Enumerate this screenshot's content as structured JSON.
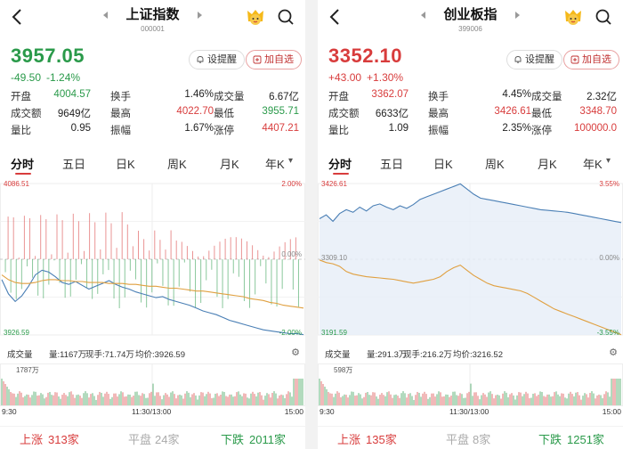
{
  "panels": [
    {
      "title": "上证指数",
      "code": "000001",
      "price": "3957.05",
      "change": "-49.50",
      "change_pct": "-1.24%",
      "trend": "down",
      "alert_label": "设提醒",
      "watch_label": "加自选",
      "stats": [
        [
          {
            "label": "开盘",
            "value": "4004.57",
            "tone": "green"
          },
          {
            "label": "换手",
            "value": "1.46%",
            "tone": ""
          },
          {
            "label": "成交量",
            "value": "6.67亿",
            "tone": ""
          }
        ],
        [
          {
            "label": "成交额",
            "value": "9649亿",
            "tone": ""
          },
          {
            "label": "最高",
            "value": "4022.70",
            "tone": "red"
          },
          {
            "label": "最低",
            "value": "3955.71",
            "tone": "green"
          }
        ],
        [
          {
            "label": "量比",
            "value": "0.95",
            "tone": ""
          },
          {
            "label": "振幅",
            "value": "1.67%",
            "tone": ""
          },
          {
            "label": "涨停",
            "value": "4407.21",
            "tone": "red"
          }
        ]
      ],
      "tabs": [
        "分时",
        "五日",
        "日K",
        "周K",
        "月K",
        "年K"
      ],
      "chart": {
        "high_label": "4086.51",
        "low_label": "3926.59",
        "mid_label": "0.00%",
        "pct_high": "2.00%",
        "pct_low": "-2.00%",
        "high": 4086.51,
        "low": 3926.59,
        "price_series": [
          3985,
          3970,
          3962,
          3968,
          3978,
          3990,
          3995,
          3993,
          3988,
          3982,
          3980,
          3983,
          3979,
          3975,
          3978,
          3981,
          3984,
          3980,
          3977,
          3975,
          3972,
          3970,
          3968,
          3966,
          3967,
          3964,
          3962,
          3960,
          3958,
          3955,
          3952,
          3950,
          3948,
          3945,
          3942,
          3940,
          3938,
          3936,
          3934,
          3932,
          3931,
          3930,
          3929,
          3928,
          3928,
          3927
        ],
        "avg_series": [
          3990,
          3985,
          3982,
          3981,
          3981,
          3982,
          3984,
          3985,
          3985,
          3984,
          3984,
          3983,
          3983,
          3982,
          3982,
          3982,
          3981,
          3981,
          3981,
          3980,
          3980,
          3979,
          3978,
          3978,
          3977,
          3976,
          3976,
          3975,
          3974,
          3973,
          3973,
          3972,
          3971,
          3970,
          3969,
          3968,
          3967,
          3965,
          3964,
          3963,
          3961,
          3960,
          3958,
          3957,
          3956,
          3955
        ]
      },
      "volume_header": {
        "label": "成交量",
        "vol": "量:1167万",
        "now": "现手:71.74万",
        "avg": "均价:3926.59",
        "max": "1787万"
      },
      "times": [
        "9:30",
        "11:30/13:00",
        "15:00"
      ],
      "breadth": {
        "up_label": "上涨",
        "up": "313家",
        "flat_label": "平盘",
        "flat": "24家",
        "down_label": "下跌",
        "down": "2011家"
      }
    },
    {
      "title": "创业板指",
      "code": "399006",
      "price": "3352.10",
      "change": "+43.00",
      "change_pct": "+1.30%",
      "trend": "up",
      "alert_label": "设提醒",
      "watch_label": "加自选",
      "stats": [
        [
          {
            "label": "开盘",
            "value": "3362.07",
            "tone": "red"
          },
          {
            "label": "换手",
            "value": "4.45%",
            "tone": ""
          },
          {
            "label": "成交量",
            "value": "2.32亿",
            "tone": ""
          }
        ],
        [
          {
            "label": "成交额",
            "value": "6633亿",
            "tone": ""
          },
          {
            "label": "最高",
            "value": "3426.61",
            "tone": "red"
          },
          {
            "label": "最低",
            "value": "3348.70",
            "tone": "red"
          }
        ],
        [
          {
            "label": "量比",
            "value": "1.09",
            "tone": ""
          },
          {
            "label": "振幅",
            "value": "2.35%",
            "tone": ""
          },
          {
            "label": "涨停",
            "value": "100000.0",
            "tone": "red"
          }
        ]
      ],
      "tabs": [
        "分时",
        "五日",
        "日K",
        "周K",
        "月K",
        "年K"
      ],
      "chart": {
        "high_label": "3426.61",
        "low_label": "3191.59",
        "mid_label": "3309.10",
        "pct_mid": "0.00%",
        "pct_high": "3.55%",
        "pct_low": "-3.55%",
        "high": 3426.61,
        "low": 3191.59,
        "price_series": [
          3372,
          3378,
          3368,
          3380,
          3386,
          3382,
          3390,
          3384,
          3392,
          3395,
          3390,
          3386,
          3392,
          3388,
          3394,
          3402,
          3406,
          3410,
          3414,
          3418,
          3422,
          3426,
          3418,
          3410,
          3404,
          3402,
          3400,
          3398,
          3396,
          3394,
          3392,
          3390,
          3388,
          3386,
          3385,
          3384,
          3383,
          3382,
          3380,
          3378,
          3376,
          3374,
          3372,
          3370,
          3368,
          3366
        ],
        "avg_series": [
          3308,
          3304,
          3302,
          3298,
          3290,
          3286,
          3284,
          3282,
          3281,
          3280,
          3279,
          3278,
          3276,
          3274,
          3272,
          3274,
          3276,
          3278,
          3282,
          3290,
          3296,
          3300,
          3292,
          3284,
          3278,
          3272,
          3268,
          3266,
          3264,
          3262,
          3260,
          3256,
          3250,
          3244,
          3238,
          3232,
          3228,
          3224,
          3220,
          3216,
          3212,
          3208,
          3204,
          3200,
          3196,
          3192
        ]
      },
      "volume_header": {
        "label": "成交量",
        "vol": "量:291.3万",
        "now": "现手:216.2万",
        "avg": "均价:3216.52",
        "max": "598万"
      },
      "times": [
        "9:30",
        "11:30/13:00",
        "15:00"
      ],
      "breadth": {
        "up_label": "上涨",
        "up": "135家",
        "flat_label": "平盘",
        "flat": "8家",
        "down_label": "下跌",
        "down": "1251家"
      }
    }
  ],
  "colors": {
    "up": "#d83c3c",
    "down": "#2a9a4a",
    "price_line": "#4a7fb5",
    "avg_line": "#e0a040"
  }
}
